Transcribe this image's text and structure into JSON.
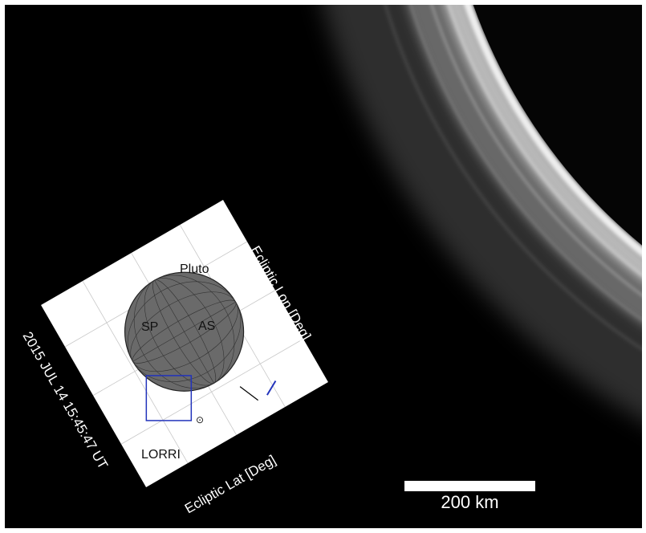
{
  "scene": {
    "image_kind": "photograph",
    "colors": {
      "sky": "#000000",
      "haze": "#ffffff",
      "inset_background": "#ffffff",
      "pluto_fill": "#6a6a6a",
      "lorri_box": "#2233bb"
    },
    "scale_bar": {
      "label": "200 km"
    }
  },
  "inset": {
    "body_label": "Pluto",
    "subsolar_label": "SP",
    "antisolar_label": "AS",
    "instrument_label": "LORRI",
    "sun_symbol": "⊙",
    "axis_lon": "Ecliptic Lon [Deg]",
    "axis_lat": "Ecliptic Lat [Deg]",
    "timestamp": "2015 JUL 14 15:45:47 UT"
  }
}
